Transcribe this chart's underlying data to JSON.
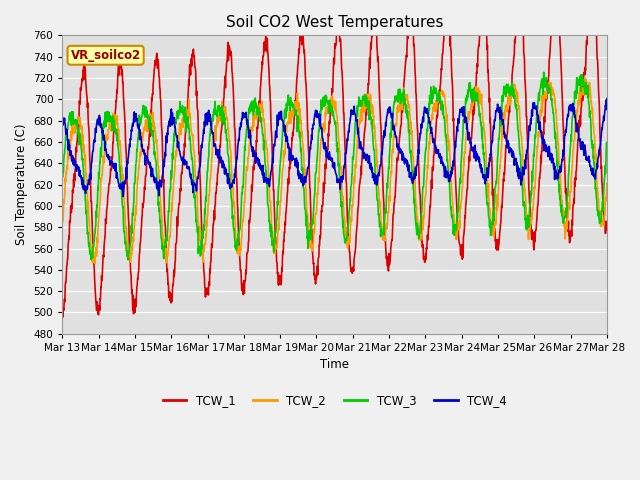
{
  "title": "Soil CO2 West Temperatures",
  "xlabel": "Time",
  "ylabel": "Soil Temperature (C)",
  "ylim": [
    480,
    760
  ],
  "bg_color": "#e0e0e0",
  "fig_color": "#f0f0f0",
  "legend_label": "VR_soilco2",
  "xtick_labels": [
    "Mar 13",
    "Mar 14",
    "Mar 15",
    "Mar 16",
    "Mar 17",
    "Mar 18",
    "Mar 19",
    "Mar 20",
    "Mar 21",
    "Mar 22",
    "Mar 23",
    "Mar 24",
    "Mar 25",
    "Mar 26",
    "Mar 27",
    "Mar 28"
  ],
  "ytick_values": [
    480,
    500,
    520,
    540,
    560,
    580,
    600,
    620,
    640,
    660,
    680,
    700,
    720,
    740,
    760
  ],
  "series": {
    "TCW_1": {
      "color": "#dd0000",
      "lw": 1.2
    },
    "TCW_2": {
      "color": "#ff9900",
      "lw": 1.2
    },
    "TCW_3": {
      "color": "#00cc00",
      "lw": 1.2
    },
    "TCW_4": {
      "color": "#0000cc",
      "lw": 1.2
    }
  }
}
